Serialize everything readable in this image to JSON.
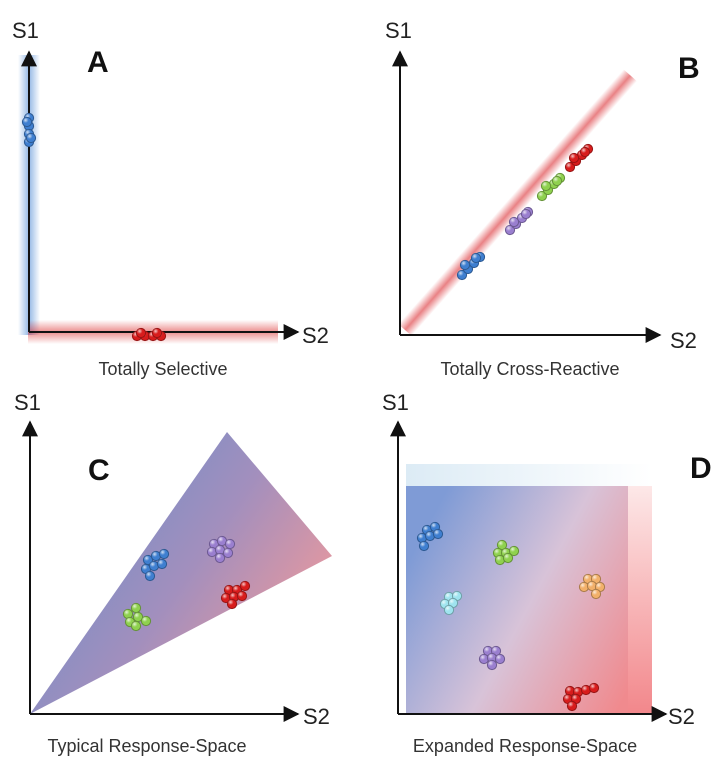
{
  "panels": [
    {
      "letter": "A",
      "y_label": "S1",
      "x_label": "S2",
      "caption": "Totally Selective"
    },
    {
      "letter": "B",
      "y_label": "S1",
      "x_label": "S2",
      "caption": "Totally Cross-Reactive"
    },
    {
      "letter": "C",
      "y_label": "S1",
      "x_label": "S2",
      "caption": "Typical Response-Space"
    },
    {
      "letter": "D",
      "y_label": "S1",
      "x_label": "S2",
      "caption": "Expanded Response-Space"
    }
  ],
  "colors": {
    "blue": "#3f7fd0",
    "red": "#d81c1c",
    "green": "#8fd14f",
    "purple": "#9a7fcf",
    "cyan": "#9fe4ef",
    "orange": "#f2b06a",
    "axis": "#111111",
    "region_blue": "#6f8ec9",
    "region_red": "#f29a9a"
  }
}
